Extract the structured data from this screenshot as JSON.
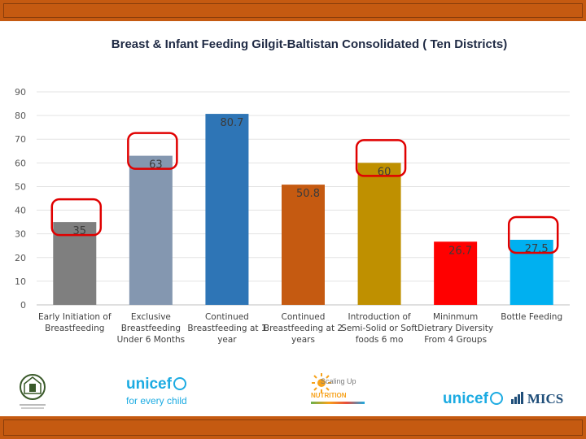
{
  "chart_data": {
    "type": "bar",
    "title": "Breast & Infant Feeding Gilgit-Baltistan Consolidated ( Ten Districts)",
    "xlabel": "",
    "ylabel": "",
    "ylim": [
      0,
      90
    ],
    "yticks": [
      0,
      10,
      20,
      30,
      40,
      50,
      60,
      70,
      80,
      90
    ],
    "grid": true,
    "categories": [
      [
        "Early Initiation of",
        "Breastfeeding"
      ],
      [
        "Exclusive",
        "Breastfeeding",
        "Under 6 Months"
      ],
      [
        "Continued",
        "Breastfeeding at 1",
        "year"
      ],
      [
        "Continued",
        "Breastfeeding at 2",
        "years"
      ],
      [
        "Introduction of",
        "Semi-Solid or Soft",
        "foods 6 mo"
      ],
      [
        "Mininmum",
        "Dietrary Diversity",
        "From 4 Groups"
      ],
      [
        "Bottle Feeding"
      ]
    ],
    "values": [
      35,
      63,
      80.7,
      50.8,
      60,
      26.7,
      27.5
    ],
    "data_labels": [
      "35",
      "63",
      "80.7",
      "50.8",
      "60",
      "26.7",
      "27.5"
    ],
    "colors": [
      "#7f7f7f",
      "#8497b0",
      "#2e75b6",
      "#c55a11",
      "#bf9000",
      "#ff0000",
      "#00b0f0"
    ],
    "highlighted": [
      0,
      1,
      4,
      6
    ],
    "highlight_color": "#e00000"
  },
  "logos": {
    "unicef_1": "unicef",
    "unicef_tagline": "for every child",
    "sun_line1": "Scaling Up",
    "sun_line2": "NUTRITION",
    "unicef_2": "unicef",
    "mics": "MICS"
  }
}
